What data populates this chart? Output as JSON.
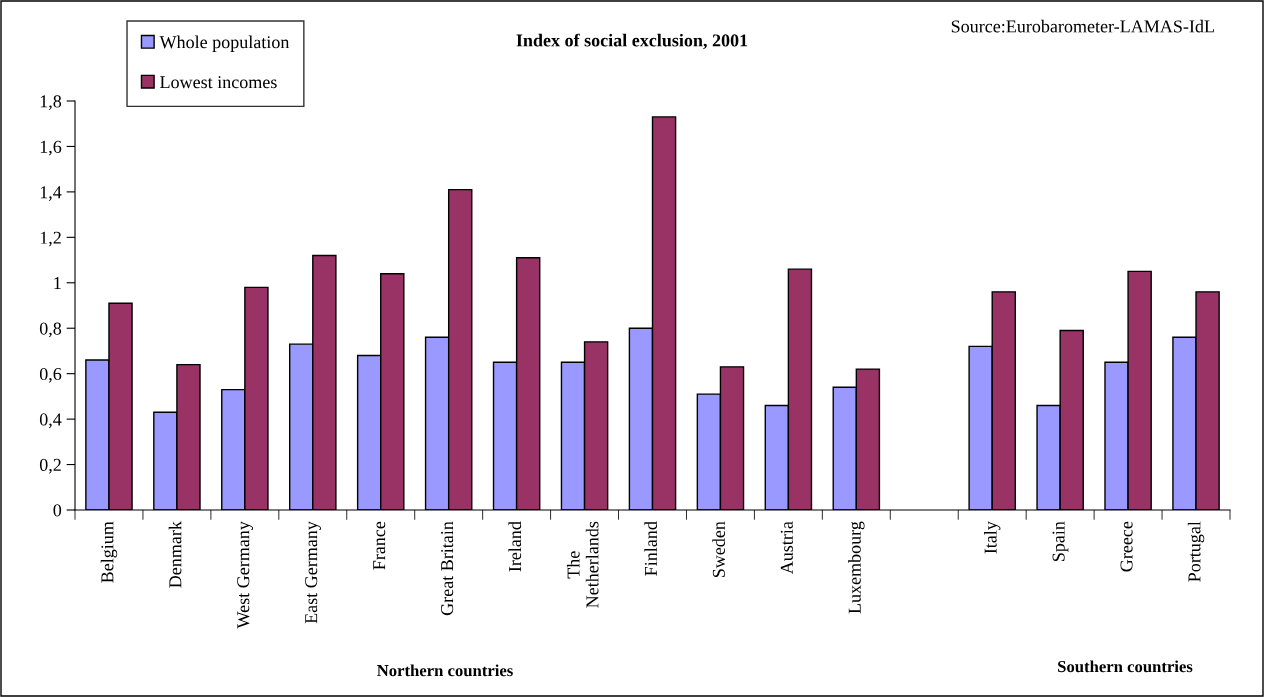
{
  "chart_data": {
    "type": "bar",
    "title": "Index of social exclusion, 2001",
    "categories": [
      "Belgium",
      "Denmark",
      "West Germany",
      "East Germany",
      "France",
      "Great Britain",
      "Ireland",
      "The\nNetherlands",
      "Finland",
      "Sweden",
      "Austria",
      "Luxembourg",
      null,
      "Italy",
      "Spain",
      "Greece",
      "Portugal"
    ],
    "series": [
      {
        "name": "Whole population",
        "color": "#9999ff",
        "values": [
          0.66,
          0.43,
          0.53,
          0.73,
          0.68,
          0.76,
          0.65,
          0.65,
          0.8,
          0.51,
          0.46,
          0.54,
          null,
          0.72,
          0.46,
          0.65,
          0.76
        ]
      },
      {
        "name": "Lowest incomes",
        "color": "#993366",
        "values": [
          0.91,
          0.64,
          0.98,
          1.12,
          1.04,
          1.41,
          1.11,
          0.74,
          1.73,
          0.63,
          1.06,
          0.62,
          null,
          0.96,
          0.79,
          1.05,
          0.96
        ]
      }
    ],
    "ylim": [
      0,
      1.8
    ],
    "yticks": [
      0,
      {
        "value": 0.2,
        "label": "0,2"
      },
      {
        "value": 0.4,
        "label": "0,4"
      },
      {
        "value": 0.6,
        "label": "0,6"
      },
      {
        "value": 0.8,
        "label": "0,8"
      },
      1,
      {
        "value": 1.2,
        "label": "1,2"
      },
      {
        "value": 1.4,
        "label": "1,4"
      },
      {
        "value": 1.6,
        "label": "1,6"
      },
      {
        "value": 1.8,
        "label": "1,8"
      }
    ],
    "grid": false,
    "legend": "top left",
    "annotations": [
      "Source:Eurobarometer-LAMAS-IdL",
      "Northern countries",
      "Southern countries"
    ]
  }
}
